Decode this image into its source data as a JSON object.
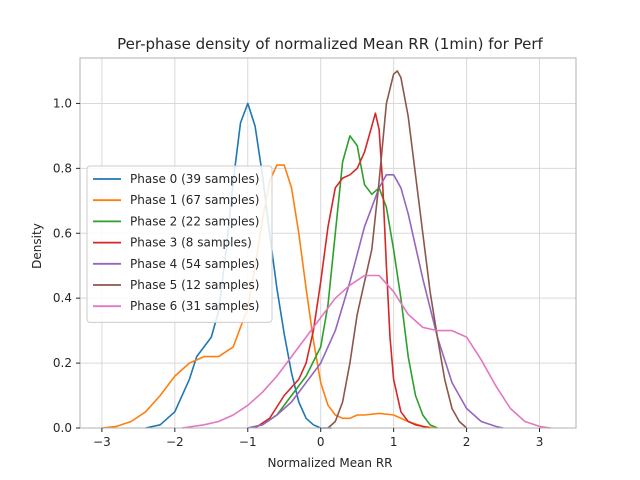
{
  "chart_data": {
    "type": "line",
    "title": "Per-phase density of normalized Mean RR (1min) for Perf",
    "xlabel": "Normalized Mean RR",
    "ylabel": "Density",
    "xlim": [
      -3.3,
      3.5
    ],
    "ylim": [
      0,
      1.14
    ],
    "xticks": [
      -3,
      -2,
      -1,
      0,
      1,
      2,
      3
    ],
    "xtick_labels": [
      "−3",
      "−2",
      "−1",
      "0",
      "1",
      "2",
      "3"
    ],
    "yticks": [
      0,
      0.2,
      0.4,
      0.6,
      0.8,
      1.0
    ],
    "ytick_labels": [
      "0.0",
      "0.2",
      "0.4",
      "0.6",
      "0.8",
      "1.0"
    ],
    "grid": true,
    "legend_position": "center-left",
    "series": [
      {
        "name": "Phase 0 (39 samples)",
        "color": "#1f77b4",
        "x": [
          -2.4,
          -2.2,
          -2.0,
          -1.8,
          -1.7,
          -1.6,
          -1.5,
          -1.4,
          -1.3,
          -1.2,
          -1.1,
          -1.0,
          -0.9,
          -0.8,
          -0.7,
          -0.6,
          -0.5,
          -0.4,
          -0.3,
          -0.2,
          -0.1,
          0.0,
          0.1,
          0.15
        ],
        "y": [
          0.0,
          0.01,
          0.05,
          0.15,
          0.22,
          0.25,
          0.28,
          0.36,
          0.54,
          0.76,
          0.94,
          1.0,
          0.93,
          0.78,
          0.6,
          0.43,
          0.29,
          0.17,
          0.08,
          0.03,
          0.01,
          0.0,
          0.0,
          0.0
        ]
      },
      {
        "name": "Phase 1 (67 samples)",
        "color": "#ff7f0e",
        "x": [
          -3.0,
          -2.8,
          -2.6,
          -2.4,
          -2.2,
          -2.0,
          -1.8,
          -1.6,
          -1.4,
          -1.2,
          -1.0,
          -0.9,
          -0.8,
          -0.7,
          -0.6,
          -0.5,
          -0.4,
          -0.3,
          -0.2,
          -0.1,
          0.0,
          0.1,
          0.2,
          0.3,
          0.4,
          0.5,
          0.6,
          0.8,
          1.0,
          1.2,
          1.4,
          1.6
        ],
        "y": [
          0.0,
          0.005,
          0.02,
          0.05,
          0.1,
          0.16,
          0.2,
          0.22,
          0.22,
          0.25,
          0.37,
          0.5,
          0.64,
          0.76,
          0.81,
          0.81,
          0.74,
          0.6,
          0.43,
          0.27,
          0.14,
          0.07,
          0.04,
          0.03,
          0.03,
          0.04,
          0.04,
          0.045,
          0.04,
          0.02,
          0.005,
          0.0
        ]
      },
      {
        "name": "Phase 2 (22 samples)",
        "color": "#2ca02c",
        "x": [
          -1.0,
          -0.8,
          -0.6,
          -0.4,
          -0.2,
          0.0,
          0.1,
          0.2,
          0.3,
          0.4,
          0.5,
          0.6,
          0.7,
          0.8,
          0.9,
          1.0,
          1.1,
          1.2,
          1.3,
          1.4,
          1.5,
          1.6
        ],
        "y": [
          0.0,
          0.01,
          0.04,
          0.1,
          0.16,
          0.25,
          0.38,
          0.6,
          0.82,
          0.9,
          0.87,
          0.75,
          0.72,
          0.74,
          0.68,
          0.55,
          0.4,
          0.22,
          0.1,
          0.04,
          0.01,
          0.0
        ]
      },
      {
        "name": "Phase 3 (8 samples)",
        "color": "#d62728",
        "x": [
          -0.9,
          -0.7,
          -0.5,
          -0.3,
          -0.2,
          -0.1,
          0.0,
          0.1,
          0.2,
          0.3,
          0.4,
          0.5,
          0.6,
          0.7,
          0.75,
          0.8,
          0.85,
          0.9,
          0.95,
          1.0,
          1.1,
          1.2,
          1.3,
          1.5
        ],
        "y": [
          0.0,
          0.03,
          0.1,
          0.15,
          0.2,
          0.3,
          0.45,
          0.62,
          0.74,
          0.77,
          0.78,
          0.8,
          0.85,
          0.93,
          0.97,
          0.92,
          0.75,
          0.5,
          0.28,
          0.15,
          0.05,
          0.02,
          0.01,
          0.0
        ]
      },
      {
        "name": "Phase 4 (54 samples)",
        "color": "#9467bd",
        "x": [
          -1.0,
          -0.8,
          -0.6,
          -0.4,
          -0.2,
          0.0,
          0.2,
          0.4,
          0.6,
          0.8,
          0.9,
          1.0,
          1.1,
          1.2,
          1.4,
          1.6,
          1.8,
          2.0,
          2.2,
          2.4,
          2.5
        ],
        "y": [
          0.0,
          0.01,
          0.04,
          0.08,
          0.14,
          0.2,
          0.3,
          0.45,
          0.62,
          0.74,
          0.78,
          0.78,
          0.74,
          0.66,
          0.46,
          0.28,
          0.14,
          0.06,
          0.02,
          0.005,
          0.0
        ]
      },
      {
        "name": "Phase 5 (12 samples)",
        "color": "#8c564b",
        "x": [
          0.1,
          0.2,
          0.3,
          0.4,
          0.5,
          0.6,
          0.7,
          0.8,
          0.9,
          1.0,
          1.05,
          1.1,
          1.2,
          1.3,
          1.4,
          1.5,
          1.6,
          1.7,
          1.8,
          1.9,
          2.0
        ],
        "y": [
          0.0,
          0.02,
          0.08,
          0.2,
          0.35,
          0.45,
          0.55,
          0.76,
          1.0,
          1.09,
          1.1,
          1.08,
          0.96,
          0.78,
          0.6,
          0.42,
          0.28,
          0.15,
          0.06,
          0.02,
          0.0
        ]
      },
      {
        "name": "Phase 6 (31 samples)",
        "color": "#e377c2",
        "x": [
          -1.9,
          -1.6,
          -1.4,
          -1.2,
          -1.0,
          -0.8,
          -0.6,
          -0.4,
          -0.2,
          0.0,
          0.2,
          0.4,
          0.6,
          0.8,
          1.0,
          1.2,
          1.4,
          1.6,
          1.8,
          2.0,
          2.2,
          2.4,
          2.6,
          2.8,
          3.0,
          3.15
        ],
        "y": [
          0.0,
          0.01,
          0.02,
          0.04,
          0.07,
          0.11,
          0.16,
          0.22,
          0.28,
          0.34,
          0.4,
          0.44,
          0.47,
          0.47,
          0.42,
          0.35,
          0.31,
          0.3,
          0.3,
          0.28,
          0.21,
          0.13,
          0.06,
          0.02,
          0.005,
          0.0
        ]
      }
    ]
  },
  "colors": {
    "grid": "#d9d9d9",
    "axes": "#b0b0b0",
    "text": "#262626",
    "background": "#ffffff"
  }
}
